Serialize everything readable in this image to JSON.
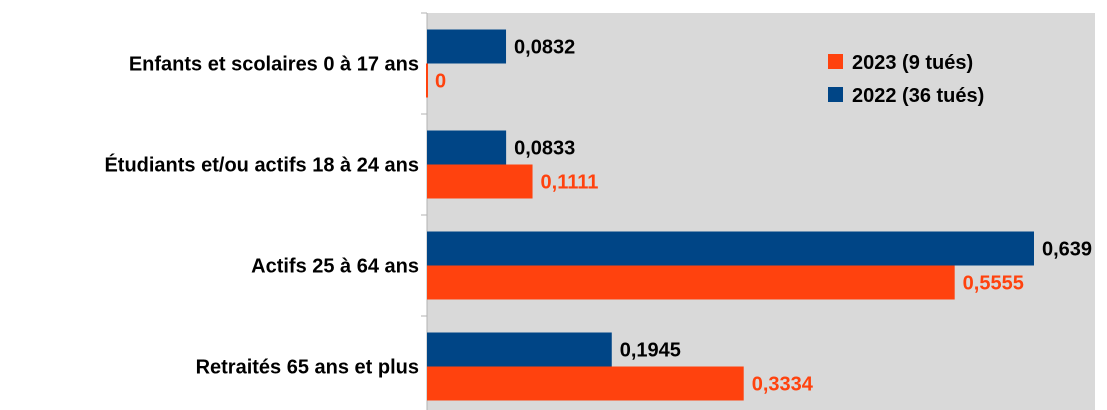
{
  "chart_data": {
    "type": "bar",
    "orientation": "horizontal",
    "categories": [
      "Enfants et scolaires 0 à 17 ans",
      "Étudiants et/ou actifs 18 à 24 ans",
      "Actifs 25 à 64 ans",
      "Retraités 65 ans et plus"
    ],
    "series": [
      {
        "name": "2022 (36 tués)",
        "color": "#004586",
        "label_color": "#000000",
        "values": [
          0.0832,
          0.0833,
          0.639,
          0.1945
        ],
        "value_labels": [
          "0,0832",
          "0,0833",
          "0,639",
          "0,1945"
        ]
      },
      {
        "name": "2023 (9 tués)",
        "color": "#ff420e",
        "label_color": "#ff420e",
        "values": [
          0,
          0.1111,
          0.5555,
          0.3334
        ],
        "value_labels": [
          "0",
          "0,1111",
          "0,5555",
          "0,3334"
        ]
      }
    ],
    "legend": {
      "position": "top-right",
      "entries": [
        {
          "label": "2023 (9 tués)",
          "color": "#ff420e"
        },
        {
          "label": "2022 (36 tués)",
          "color": "#004586"
        }
      ]
    },
    "xlim": [
      0,
      0.7
    ],
    "grid": false,
    "plot_background": "#d9d9d9"
  }
}
